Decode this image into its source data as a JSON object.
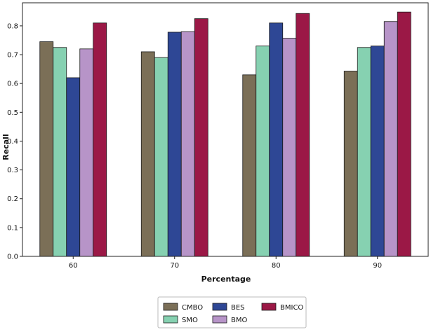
{
  "chart_data": {
    "type": "bar",
    "title": "",
    "xlabel": "Percentage",
    "ylabel": "Recall",
    "categories": [
      "60",
      "70",
      "80",
      "90"
    ],
    "ylim": [
      0,
      0.88
    ],
    "yticks": [
      0.0,
      0.1,
      0.2,
      0.3,
      0.4,
      0.5,
      0.6,
      0.7,
      0.8
    ],
    "ytick_labels": [
      "0.0",
      "0.1",
      "0.2",
      "0.3",
      "0.4",
      "0.5",
      "0.6",
      "0.7",
      "0.8"
    ],
    "grid": false,
    "legend_position": "bottom-center",
    "series": [
      {
        "name": "CMBO",
        "color": "#7b6f57",
        "values": [
          0.745,
          0.71,
          0.63,
          0.643
        ]
      },
      {
        "name": "SMO",
        "color": "#86d1b1",
        "values": [
          0.725,
          0.69,
          0.73,
          0.725
        ]
      },
      {
        "name": "BES",
        "color": "#2e4795",
        "values": [
          0.62,
          0.778,
          0.81,
          0.73
        ]
      },
      {
        "name": "BMO",
        "color": "#b794c8",
        "values": [
          0.72,
          0.78,
          0.757,
          0.815
        ]
      },
      {
        "name": "BMICO",
        "color": "#9b1846",
        "values": [
          0.81,
          0.825,
          0.843,
          0.848
        ]
      }
    ],
    "legend_order": [
      "CMBO",
      "BES",
      "BMICO",
      "SMO",
      "BMO"
    ]
  }
}
